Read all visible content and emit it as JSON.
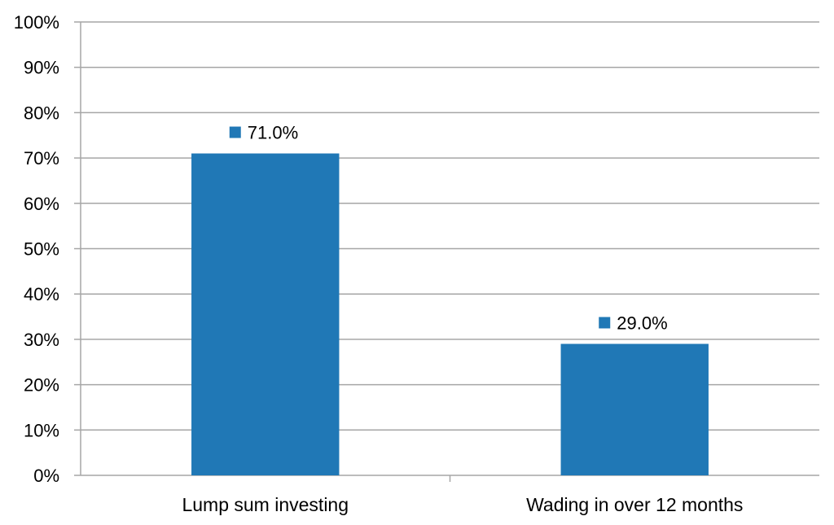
{
  "chart_data": {
    "type": "bar",
    "title": "",
    "xlabel": "",
    "ylabel": "",
    "categories": [
      "Lump sum investing",
      "Wading in over 12 months"
    ],
    "values": [
      71.0,
      29.0
    ],
    "data_labels": [
      "71.0%",
      "29.0%"
    ],
    "ylim": [
      0,
      100
    ],
    "y_ticks": [
      0,
      10,
      20,
      30,
      40,
      50,
      60,
      70,
      80,
      90,
      100
    ],
    "y_tick_labels": [
      "0%",
      "10%",
      "20%",
      "30%",
      "40%",
      "50%",
      "60%",
      "70%",
      "80%",
      "90%",
      "100%"
    ],
    "grid": true,
    "legend": "none",
    "bar_color": "#2078B6",
    "grid_color": "#A6A6A6",
    "text_color": "#000000"
  }
}
